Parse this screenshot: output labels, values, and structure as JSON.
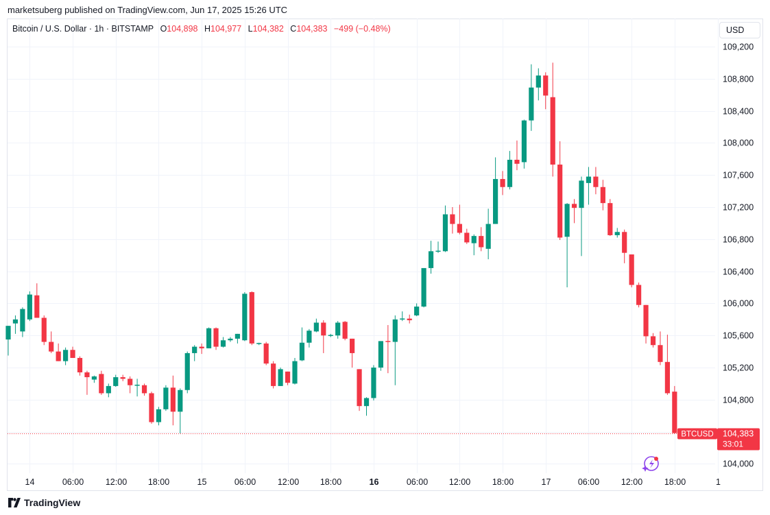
{
  "publisher": "marketsuberg published on TradingView.com, Jun 17, 2025 15:26 UTC",
  "header": {
    "symbol": "Bitcoin / U.S. Dollar · 1h · BITSTAMP",
    "o_label": "O",
    "o_value": "104,898",
    "h_label": "H",
    "h_value": "104,977",
    "l_label": "L",
    "l_value": "104,382",
    "c_label": "C",
    "c_value": "104,383",
    "change": "−499 (−0.48%)"
  },
  "currency_button": "USD",
  "price_tag": {
    "symbol": "BTCUSD",
    "price": "104,383",
    "countdown": "33:01"
  },
  "brand": "TradingView",
  "colors": {
    "up": "#089981",
    "down": "#f23645",
    "grid": "#f0f3fa",
    "text": "#131722"
  },
  "icons": {
    "assistant": "sparkle-assistant-icon",
    "logo": "tradingview-logo-icon"
  },
  "chart_data": {
    "type": "candlestick",
    "interval": "1h",
    "ylim": [
      103900,
      109400
    ],
    "y_ticks": [
      104000,
      104400,
      104800,
      105200,
      105600,
      106000,
      106400,
      106800,
      107200,
      107600,
      108000,
      108400,
      108800,
      109200
    ],
    "y_tick_labels": [
      "104,000",
      "",
      "104,800",
      "105,200",
      "105,600",
      "106,000",
      "106,400",
      "106,800",
      "107,200",
      "107,600",
      "108,000",
      "108,400",
      "108,800",
      "109,200"
    ],
    "x_ticks": [
      {
        "i": 3,
        "label": "14",
        "bold": false
      },
      {
        "i": 9,
        "label": "06:00",
        "bold": false
      },
      {
        "i": 15,
        "label": "12:00",
        "bold": false
      },
      {
        "i": 21,
        "label": "18:00",
        "bold": false
      },
      {
        "i": 27,
        "label": "15",
        "bold": false
      },
      {
        "i": 33,
        "label": "06:00",
        "bold": false
      },
      {
        "i": 39,
        "label": "12:00",
        "bold": false
      },
      {
        "i": 45,
        "label": "18:00",
        "bold": false
      },
      {
        "i": 51,
        "label": "16",
        "bold": true
      },
      {
        "i": 57,
        "label": "06:00",
        "bold": false
      },
      {
        "i": 63,
        "label": "12:00",
        "bold": false
      },
      {
        "i": 69,
        "label": "18:00",
        "bold": false
      },
      {
        "i": 75,
        "label": "17",
        "bold": false
      },
      {
        "i": 81,
        "label": "06:00",
        "bold": false
      },
      {
        "i": 87,
        "label": "12:00",
        "bold": false
      },
      {
        "i": 93,
        "label": "18:00",
        "bold": false
      },
      {
        "i": 99,
        "label": "1",
        "bold": false
      }
    ],
    "last_price": 104383,
    "candles": [
      [
        105550,
        105720,
        105350,
        105720
      ],
      [
        105750,
        105850,
        105620,
        105800
      ],
      [
        105650,
        105950,
        105580,
        105930
      ],
      [
        105800,
        106150,
        105780,
        106110
      ],
      [
        106100,
        106250,
        105820,
        105820
      ],
      [
        105820,
        105850,
        105480,
        105520
      ],
      [
        105520,
        105650,
        105380,
        105400
      ],
      [
        105400,
        105500,
        105280,
        105280
      ],
      [
        105280,
        105450,
        105230,
        105420
      ],
      [
        105420,
        105460,
        105320,
        105320
      ],
      [
        105320,
        105340,
        105100,
        105140
      ],
      [
        105140,
        105160,
        104860,
        105080
      ],
      [
        105050,
        105100,
        105010,
        105090
      ],
      [
        105120,
        105160,
        104860,
        104880
      ],
      [
        104880,
        105000,
        104830,
        104970
      ],
      [
        104970,
        105110,
        104960,
        105080
      ],
      [
        105080,
        105110,
        105030,
        105060
      ],
      [
        105060,
        105090,
        104880,
        104980
      ],
      [
        104980,
        105060,
        104840,
        104980
      ],
      [
        104980,
        105000,
        104850,
        104880
      ],
      [
        104880,
        104900,
        104500,
        104520
      ],
      [
        104520,
        104710,
        104480,
        104680
      ],
      [
        104680,
        104980,
        104660,
        104950
      ],
      [
        104950,
        105100,
        104480,
        104650
      ],
      [
        104650,
        104940,
        104380,
        104920
      ],
      [
        104920,
        105400,
        104880,
        105380
      ],
      [
        105380,
        105480,
        105280,
        105460
      ],
      [
        105460,
        105500,
        105370,
        105440
      ],
      [
        105440,
        105700,
        105440,
        105690
      ],
      [
        105690,
        105700,
        105420,
        105460
      ],
      [
        105460,
        105580,
        105450,
        105540
      ],
      [
        105540,
        105580,
        105520,
        105560
      ],
      [
        105560,
        105620,
        105500,
        105620
      ],
      [
        105540,
        106140,
        105530,
        106120
      ],
      [
        106140,
        106150,
        105480,
        105500
      ],
      [
        105500,
        105510,
        105480,
        105500
      ],
      [
        105500,
        105520,
        105230,
        105250
      ],
      [
        105250,
        105280,
        104940,
        104970
      ],
      [
        104970,
        105200,
        104970,
        105180
      ],
      [
        105150,
        105150,
        104980,
        105010
      ],
      [
        105000,
        105320,
        104990,
        105280
      ],
      [
        105290,
        105700,
        105280,
        105510
      ],
      [
        105510,
        105680,
        105450,
        105660
      ],
      [
        105650,
        105810,
        105640,
        105760
      ],
      [
        105760,
        105790,
        105380,
        105600
      ],
      [
        105600,
        105620,
        105580,
        105600
      ],
      [
        105600,
        105780,
        105560,
        105760
      ],
      [
        105770,
        105780,
        105540,
        105560
      ],
      [
        105560,
        105560,
        105200,
        105380
      ],
      [
        105180,
        105180,
        104660,
        104720
      ],
      [
        104720,
        104830,
        104600,
        104820
      ],
      [
        104820,
        105230,
        104790,
        105200
      ],
      [
        105200,
        105530,
        105160,
        105530
      ],
      [
        105530,
        105730,
        105130,
        105520
      ],
      [
        105520,
        105850,
        104980,
        105800
      ],
      [
        105800,
        105900,
        105780,
        105810
      ],
      [
        105810,
        105860,
        105750,
        105790
      ],
      [
        105850,
        106000,
        105840,
        105960
      ],
      [
        105960,
        106420,
        105950,
        106440
      ],
      [
        106440,
        106780,
        106370,
        106650
      ],
      [
        106650,
        106770,
        106630,
        106650
      ],
      [
        106650,
        107220,
        106640,
        107110
      ],
      [
        107110,
        107200,
        106870,
        106990
      ],
      [
        106990,
        107230,
        106860,
        106880
      ],
      [
        106880,
        106930,
        106740,
        106760
      ],
      [
        106750,
        106860,
        106600,
        106840
      ],
      [
        106840,
        106950,
        106650,
        106700
      ],
      [
        106680,
        107180,
        106550,
        106990
      ],
      [
        106990,
        107820,
        106990,
        107550
      ],
      [
        107550,
        107650,
        107350,
        107450
      ],
      [
        107450,
        107900,
        107420,
        107790
      ],
      [
        107790,
        108030,
        107660,
        107740
      ],
      [
        107760,
        108290,
        107680,
        108280
      ],
      [
        108280,
        108980,
        108150,
        108690
      ],
      [
        108690,
        108930,
        108530,
        108840
      ],
      [
        108840,
        108880,
        108420,
        108590
      ],
      [
        108570,
        109000,
        107580,
        107730
      ],
      [
        107730,
        108020,
        106790,
        106820
      ],
      [
        106830,
        107250,
        106200,
        107240
      ],
      [
        107240,
        107300,
        107000,
        107190
      ],
      [
        107190,
        107580,
        106590,
        107530
      ],
      [
        107500,
        107700,
        107230,
        107580
      ],
      [
        107580,
        107700,
        107360,
        107450
      ],
      [
        107450,
        107540,
        107160,
        107250
      ],
      [
        107250,
        107300,
        106840,
        106850
      ],
      [
        106850,
        106940,
        106820,
        106890
      ],
      [
        106890,
        106920,
        106500,
        106630
      ],
      [
        106610,
        106610,
        106200,
        106230
      ],
      [
        106230,
        106260,
        105950,
        105980
      ],
      [
        105980,
        105980,
        105500,
        105590
      ],
      [
        105590,
        105630,
        105450,
        105480
      ],
      [
        105480,
        105650,
        105230,
        105270
      ],
      [
        105270,
        105610,
        104860,
        104880
      ],
      [
        104900,
        104970,
        104380,
        104383
      ]
    ]
  }
}
